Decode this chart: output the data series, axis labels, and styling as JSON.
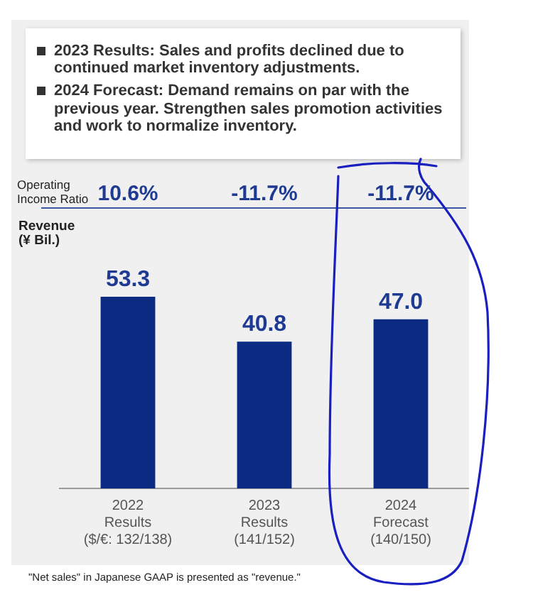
{
  "chart_data": {
    "type": "bar",
    "ylabel": "Revenue\n(¥ Bil.)",
    "categories": [
      "2022\nResults\n($/€: 132/138)",
      "2023\nResults\n(141/152)",
      "2024\nForecast\n(140/150)"
    ],
    "values": [
      53.3,
      40.8,
      47.0
    ],
    "color": "#0b2a82",
    "value_labels": [
      "53.3",
      "40.8",
      "47.0"
    ],
    "grid": false,
    "legend": false,
    "annotations": [
      "2023 Results: Sales and profits declined due to continued market inventory adjustments.",
      "2024 Forecast: Demand remains on par with the previous year. Strengthen sales promotion activities and work to normalize inventory.",
      "Operating\nIncome Ratio",
      "10.6%",
      "-11.7%",
      "-11.7%",
      "\"Net sales\" in Japanese GAAP is presented as \"revenue.\""
    ]
  }
}
